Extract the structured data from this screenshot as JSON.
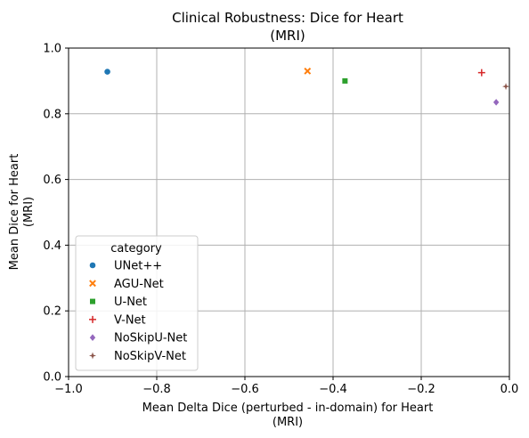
{
  "chart_data": {
    "type": "scatter",
    "title": [
      "Clinical Robustness: Dice for Heart",
      "(MRI)"
    ],
    "xlabel": [
      "Mean Delta Dice (perturbed - in-domain) for Heart",
      "(MRI)"
    ],
    "ylabel": [
      "Mean Dice for Heart",
      "(MRI)"
    ],
    "xlim": [
      -1.0,
      0.0
    ],
    "ylim": [
      0.0,
      1.0
    ],
    "xticks": [
      -1.0,
      -0.8,
      -0.6,
      -0.4,
      -0.2,
      0.0
    ],
    "xtick_labels": [
      "−1.0",
      "−0.8",
      "−0.6",
      "−0.4",
      "−0.2",
      "0.0"
    ],
    "yticks": [
      0.0,
      0.2,
      0.4,
      0.6,
      0.8,
      1.0
    ],
    "ytick_labels": [
      "0.0",
      "0.2",
      "0.4",
      "0.6",
      "0.8",
      "1.0"
    ],
    "grid": true,
    "legend": {
      "title": "category",
      "placement": "lower-left"
    },
    "series": [
      {
        "name": "UNet++",
        "marker": "circle",
        "color": "#1f77b4",
        "x": -0.912,
        "y": 0.928
      },
      {
        "name": "AGU-Net",
        "marker": "x",
        "color": "#ff7f0e",
        "x": -0.458,
        "y": 0.93
      },
      {
        "name": "U-Net",
        "marker": "square",
        "color": "#2ca02c",
        "x": -0.373,
        "y": 0.9
      },
      {
        "name": "V-Net",
        "marker": "plus",
        "color": "#d62728",
        "x": -0.063,
        "y": 0.925
      },
      {
        "name": "NoSkipU-Net",
        "marker": "diamond",
        "color": "#9467bd",
        "x": -0.03,
        "y": 0.835
      },
      {
        "name": "NoSkipV-Net",
        "marker": "star",
        "color": "#8c564b",
        "x": -0.008,
        "y": 0.883
      }
    ]
  }
}
